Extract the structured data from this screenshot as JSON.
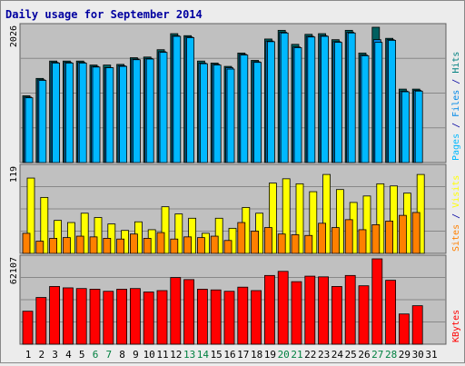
{
  "chart_data": {
    "type": "bar",
    "title": "Daily usage for September 2014",
    "categories": [
      "1",
      "2",
      "3",
      "4",
      "5",
      "6",
      "7",
      "8",
      "9",
      "10",
      "11",
      "12",
      "13",
      "14",
      "15",
      "16",
      "17",
      "18",
      "19",
      "20",
      "21",
      "22",
      "23",
      "24",
      "25",
      "26",
      "27",
      "28",
      "29",
      "30",
      "31"
    ],
    "weekend_days": [
      6,
      7,
      13,
      14,
      20,
      21,
      27,
      28
    ],
    "panels": [
      {
        "id": "hits",
        "ymax_label": "2026",
        "ymax": 2026,
        "axis_labels": [
          "Pages",
          "Files",
          "Hits"
        ],
        "series": [
          {
            "name": "Pages",
            "color": "#006060",
            "values": [
              1000,
              1260,
              1520,
              1520,
              1520,
              1460,
              1460,
              1470,
              1570,
              1580,
              1690,
              1930,
              1900,
              1520,
              1490,
              1440,
              1640,
              1530,
              1850,
              1980,
              1770,
              1920,
              1930,
              1840,
              1980,
              1640,
              2026,
              1860,
              1100,
              1100,
              null
            ]
          },
          {
            "name": "Files",
            "color": "#0088e8",
            "values": [
              980,
              1240,
              1500,
              1500,
              1500,
              1440,
              1420,
              1450,
              1550,
              1560,
              1660,
              1900,
              1880,
              1490,
              1470,
              1420,
              1620,
              1510,
              1820,
              1950,
              1730,
              1890,
              1900,
              1810,
              1950,
              1610,
              1840,
              1840,
              1070,
              1080,
              null
            ]
          },
          {
            "name": "Hits",
            "color": "#00b8ff",
            "values": [
              970,
              1230,
              1490,
              1490,
              1490,
              1430,
              1420,
              1440,
              1540,
              1550,
              1650,
              1890,
              1870,
              1480,
              1460,
              1400,
              1610,
              1500,
              1810,
              1940,
              1720,
              1880,
              1890,
              1800,
              1940,
              1600,
              1800,
              1830,
              1060,
              1070,
              null
            ]
          }
        ],
        "axis_colors": [
          "#00b8ff",
          "#0088e8",
          "#008080"
        ]
      },
      {
        "id": "visits",
        "ymax_label": "119",
        "ymax": 119,
        "axis_labels": [
          "Sites",
          "Visits"
        ],
        "series": [
          {
            "name": "Visits",
            "color": "#ffff00",
            "values": [
              105,
              78,
              46,
              43,
              56,
              50,
              41,
              32,
              44,
              33,
              65,
              55,
              49,
              28,
              49,
              35,
              64,
              56,
              98,
              104,
              97,
              86,
              110,
              89,
              71,
              80,
              97,
              94,
              84,
              110,
              null
            ]
          },
          {
            "name": "Sites",
            "color": "#ff8000",
            "values": [
              28,
              17,
              21,
              22,
              24,
              23,
              21,
              20,
              27,
              21,
              29,
              20,
              23,
              22,
              24,
              18,
              43,
              31,
              36,
              27,
              26,
              25,
              42,
              36,
              47,
              33,
              40,
              45,
              53,
              57,
              null
            ]
          }
        ],
        "axis_colors": [
          "#ff8000",
          "#ffff00"
        ]
      },
      {
        "id": "kbytes",
        "ymax_label": "62107",
        "ymax": 62107,
        "axis_labels": [
          "KBytes"
        ],
        "series": [
          {
            "name": "KBytes",
            "color": "#ff0000",
            "values": [
              24000,
              34000,
              42000,
              41000,
              40500,
              40000,
              38500,
              40000,
              40500,
              38000,
              39000,
              48500,
              47000,
              40000,
              39500,
              38500,
              41500,
              39000,
              50000,
              53000,
              45500,
              49500,
              49000,
              42000,
              50000,
              42500,
              62107,
              46500,
              22000,
              28000,
              null
            ]
          }
        ],
        "axis_colors": [
          "#ff0000"
        ]
      }
    ],
    "ylabel": "",
    "grid": true
  }
}
